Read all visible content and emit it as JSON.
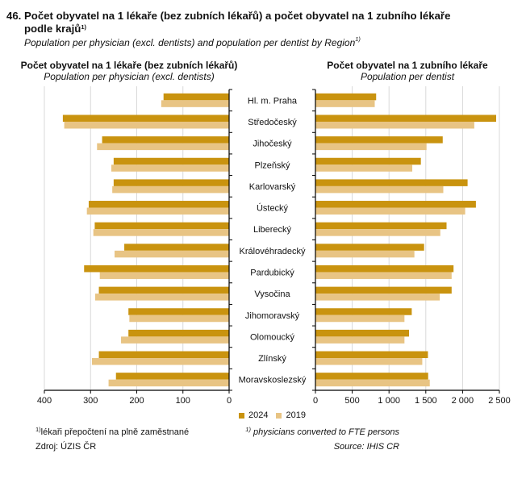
{
  "header": {
    "number": "46.",
    "title_cz_line1": "Počet obyvatel na 1 lékaře (bez zubních lékařů) a počet obyvatel na 1 zubního lékaře",
    "title_cz_line2": "podle krajů",
    "title_cz_sup": "1)",
    "title_en": "Population per physician (excl. dentists) and population per dentist by Region",
    "title_en_sup": "1)"
  },
  "legend": [
    {
      "label": "2024",
      "color": "#C9930F"
    },
    {
      "label": "2019",
      "color": "#E8C484"
    }
  ],
  "footer": {
    "note_cz_sup": "1)",
    "note_cz": "lékaři přepočtení na plně zaměstnané",
    "source_cz": "Zdroj: ÚZIS ČR",
    "note_en_sup": "1)",
    "note_en": "physicians converted to FTE persons",
    "source_en": "Source: IHIS CR"
  },
  "chart_data": [
    {
      "type": "bar",
      "orientation": "horizontal",
      "direction": "reversed",
      "title": "Počet obyvatel na 1 lékaře (bez zubních lékařů)",
      "subtitle": "Population per physician (excl. dentists)",
      "xlabel": "",
      "ylabel": "",
      "xlim": [
        0,
        400
      ],
      "xticks": [
        400,
        300,
        200,
        100,
        0
      ],
      "xtick_labels": [
        "400",
        "300",
        "200",
        "100",
        "0"
      ],
      "grid": true,
      "legend": "bottom-center",
      "categories": [
        "Hl. m. Praha",
        "Středočeský",
        "Jihočeský",
        "Plzeňský",
        "Karlovarský",
        "Ústecký",
        "Liberecký",
        "Královéhradecký",
        "Pardubický",
        "Vysočina",
        "Jihomoravský",
        "Olomoucký",
        "Zlínský",
        "Moravskoslezský"
      ],
      "series": [
        {
          "name": "2024",
          "color": "#C9930F",
          "values": [
            142,
            360,
            275,
            250,
            250,
            304,
            291,
            227,
            314,
            282,
            218,
            218,
            282,
            245
          ]
        },
        {
          "name": "2019",
          "color": "#E8C484",
          "values": [
            147,
            357,
            286,
            255,
            253,
            308,
            294,
            248,
            280,
            290,
            216,
            234,
            297,
            261
          ]
        }
      ]
    },
    {
      "type": "bar",
      "orientation": "horizontal",
      "title": "Počet obyvatel na 1 zubního lékaře",
      "subtitle": "Population per dentist",
      "xlabel": "",
      "ylabel": "",
      "xlim": [
        0,
        2500
      ],
      "xticks": [
        0,
        500,
        1000,
        1500,
        2000,
        2500
      ],
      "xtick_labels": [
        "0",
        "500",
        "1 000",
        "1 500",
        "2 000",
        "2 500"
      ],
      "grid": true,
      "legend": "bottom-center",
      "categories": [
        "Hl. m. Praha",
        "Středočeský",
        "Jihočeský",
        "Plzeňský",
        "Karlovarský",
        "Ústecký",
        "Liberecký",
        "Královéhradecký",
        "Pardubický",
        "Vysočina",
        "Jihomoravský",
        "Olomoucký",
        "Zlínský",
        "Moravskoslezský"
      ],
      "series": [
        {
          "name": "2024",
          "color": "#C9930F",
          "values": [
            825,
            2456,
            1730,
            1433,
            2068,
            2181,
            1782,
            1477,
            1877,
            1851,
            1309,
            1272,
            1529,
            1532
          ]
        },
        {
          "name": "2019",
          "color": "#E8C484",
          "values": [
            806,
            2159,
            1510,
            1316,
            1738,
            2035,
            1697,
            1345,
            1851,
            1690,
            1210,
            1210,
            1452,
            1554
          ]
        }
      ]
    }
  ]
}
